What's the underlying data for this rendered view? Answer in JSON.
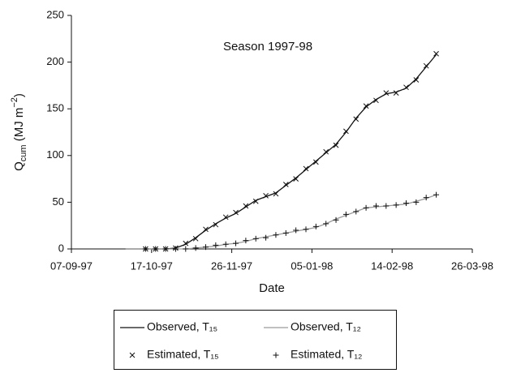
{
  "chart_data": {
    "type": "line",
    "title": "Season 1997-98",
    "x_label": "Date",
    "y_label": [
      "Q",
      "cum",
      " (MJ m",
      "−2",
      ")"
    ],
    "x": [
      "1997-10-04",
      "1997-10-09",
      "1997-10-14",
      "1997-10-19",
      "1997-10-24",
      "1997-10-29",
      "1997-11-03",
      "1997-11-08",
      "1997-11-13",
      "1997-11-18",
      "1997-11-23",
      "1997-11-28",
      "1997-12-03",
      "1997-12-08",
      "1997-12-13",
      "1997-12-18",
      "1997-12-23",
      "1997-12-28",
      "1998-01-02",
      "1998-01-07",
      "1998-01-12",
      "1998-01-17",
      "1998-01-22",
      "1998-01-27",
      "1998-02-01",
      "1998-02-06",
      "1998-02-11",
      "1998-02-16",
      "1998-02-21",
      "1998-02-26",
      "1998-03-03",
      "1998-03-08"
    ],
    "series": [
      {
        "name": "Observed, T₁₅",
        "color": "#111111",
        "marker": "line",
        "values": [
          0,
          0,
          0,
          0,
          0,
          1,
          5,
          12,
          20,
          27,
          33,
          38,
          45,
          52,
          56,
          60,
          68,
          76,
          85,
          94,
          103,
          112,
          125,
          140,
          152,
          160,
          166,
          168,
          172,
          182,
          195,
          208
        ]
      },
      {
        "name": "Observed, T₁₂",
        "color": "#9a9a9a",
        "marker": "line",
        "values": [
          0,
          0,
          0,
          0,
          0,
          0,
          0,
          1,
          2,
          3,
          5,
          6,
          8,
          11,
          13,
          15,
          17,
          19,
          21,
          23,
          27,
          32,
          36,
          40,
          44,
          45,
          46,
          47,
          48,
          51,
          54,
          58
        ]
      },
      {
        "name": "Estimated, T₁₅",
        "color": "#111111",
        "marker": "x",
        "values": [
          null,
          null,
          0,
          0,
          0,
          1,
          6,
          11,
          21,
          26,
          34,
          39,
          46,
          51,
          57,
          59,
          69,
          75,
          86,
          93,
          104,
          111,
          126,
          139,
          153,
          159,
          167,
          167,
          173,
          181,
          196,
          209
        ]
      },
      {
        "name": "Estimated, T₁₂",
        "color": "#111111",
        "marker": "+",
        "values": [
          null,
          null,
          0,
          0,
          0,
          0,
          0,
          1,
          2,
          4,
          5,
          6,
          9,
          11,
          12,
          15,
          17,
          20,
          21,
          24,
          27,
          31,
          37,
          40,
          44,
          46,
          46,
          47,
          49,
          50,
          55,
          58
        ]
      }
    ],
    "xlim": [
      "1997-09-07",
      "1998-03-26"
    ],
    "xticks": [
      {
        "value": "1997-09-07",
        "label": "07-09-97"
      },
      {
        "value": "1997-10-17",
        "label": "17-10-97"
      },
      {
        "value": "1997-11-26",
        "label": "26-11-97"
      },
      {
        "value": "1998-01-05",
        "label": "05-01-98"
      },
      {
        "value": "1998-02-14",
        "label": "14-02-98"
      },
      {
        "value": "1998-03-26",
        "label": "26-03-98"
      }
    ],
    "ylim": [
      0,
      250
    ],
    "yticks": [
      0,
      50,
      100,
      150,
      200,
      250
    ],
    "grid": false,
    "legend": "bottom"
  }
}
